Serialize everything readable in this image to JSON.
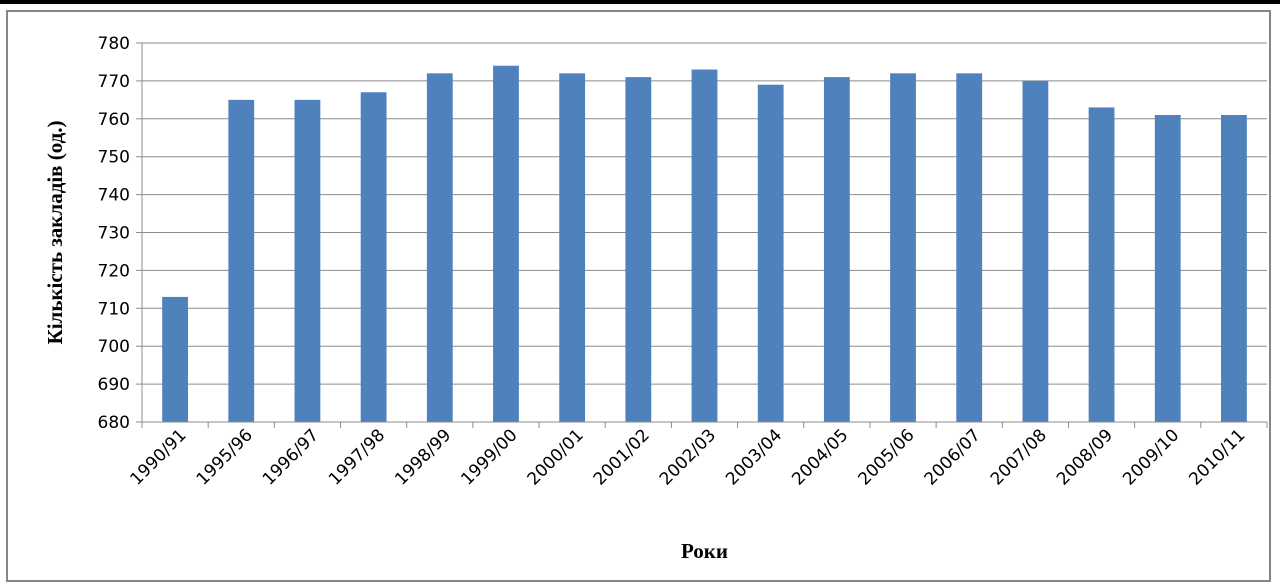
{
  "chart_data": {
    "type": "bar",
    "xlabel": "Роки",
    "ylabel": "Кількість закладів (од.)",
    "categories": [
      "1990/91",
      "1995/96",
      "1996/97",
      "1997/98",
      "1998/99",
      "1999/00",
      "2000/01",
      "2001/02",
      "2002/03",
      "2003/04",
      "2004/05",
      "2005/06",
      "2006/07",
      "2007/08",
      "2008/09",
      "2009/10",
      "2010/11"
    ],
    "values": [
      713,
      765,
      765,
      767,
      772,
      774,
      772,
      771,
      773,
      769,
      771,
      772,
      772,
      770,
      763,
      761,
      761
    ],
    "ylim": [
      680,
      780
    ],
    "yticks": [
      "680",
      "690",
      "700",
      "710",
      "720",
      "730",
      "740",
      "750",
      "760",
      "770",
      "780"
    ],
    "grid": true,
    "legend": "none",
    "bar_color": "#4F81BD"
  }
}
